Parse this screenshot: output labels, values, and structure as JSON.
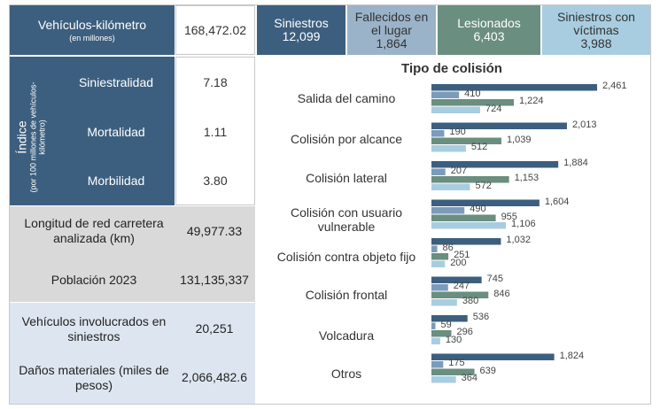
{
  "header": {
    "vk_title": "Vehículos-kilómetro",
    "vk_sub": "(en millones)",
    "vk_value": "168,472.02",
    "stats": [
      {
        "label": "Siniestros",
        "value": "12,099",
        "color": "#3d5f7f",
        "text": "#ffffff"
      },
      {
        "label": "Fallecidos en el lugar",
        "value": "1,864",
        "color": "#9bb3c9",
        "text": "#333333"
      },
      {
        "label": "Lesionados",
        "value": "6,403",
        "color": "#6a8e7f",
        "text": "#ffffff"
      },
      {
        "label": "Siniestros con víctimas",
        "value": "3,988",
        "color": "#a9cde0",
        "text": "#333333"
      }
    ]
  },
  "index": {
    "title": "Índice",
    "subtitle": "(por 100 millones de vehículos-kilómetro)",
    "rows": [
      {
        "label": "Siniestralidad",
        "value": "7.18"
      },
      {
        "label": "Mortalidad",
        "value": "1.11"
      },
      {
        "label": "Morbilidad",
        "value": "3.80"
      }
    ]
  },
  "grey_block": [
    {
      "label": "Longitud de red carretera analizada (km)",
      "value": "49,977.33"
    },
    {
      "label": "Población 2023",
      "value": "131,135,337"
    }
  ],
  "blue_block": [
    {
      "label": "Vehículos involucrados en siniestros",
      "value": "20,251"
    },
    {
      "label": "Daños materiales (miles de pesos)",
      "value": "2,066,482.6"
    }
  ],
  "chart_data": {
    "type": "bar",
    "orientation": "horizontal",
    "title": "Tipo de colisión",
    "categories": [
      "Salida del camino",
      "Colisión por alcance",
      "Colisión lateral",
      "Colisión con usuario vulnerable",
      "Colisión contra objeto fijo",
      "Colisión frontal",
      "Volcadura",
      "Otros"
    ],
    "series": [
      {
        "color": "#3d5f7f",
        "values": [
          2461,
          2013,
          1884,
          1604,
          1032,
          745,
          536,
          1824
        ]
      },
      {
        "color": "#7b9bbb",
        "values": [
          410,
          190,
          207,
          490,
          86,
          247,
          59,
          175
        ]
      },
      {
        "color": "#6a8e7f",
        "values": [
          1224,
          1039,
          1153,
          955,
          251,
          846,
          296,
          639
        ]
      },
      {
        "color": "#a9cde0",
        "values": [
          724,
          512,
          572,
          1106,
          200,
          380,
          130,
          364
        ]
      }
    ],
    "value_labels": [
      [
        "2,461",
        "410",
        "1,224",
        "724"
      ],
      [
        "2,013",
        "190",
        "1,039",
        "512"
      ],
      [
        "1,884",
        "207",
        "1,153",
        "572"
      ],
      [
        "1,604",
        "490",
        "955",
        "1,106"
      ],
      [
        "1,032",
        "86",
        "251",
        "200"
      ],
      [
        "745",
        "247",
        "846",
        "380"
      ],
      [
        "536",
        "59",
        "296",
        "130"
      ],
      [
        "1,824",
        "175",
        "639",
        "364"
      ]
    ],
    "xlim": [
      0,
      2461
    ]
  }
}
